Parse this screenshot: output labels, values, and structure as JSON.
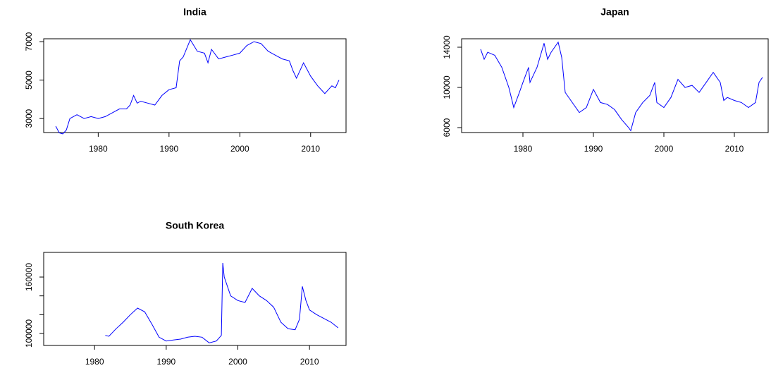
{
  "chart_data": [
    {
      "type": "line",
      "title": "India",
      "color": "#0000ff",
      "x": [
        1974,
        1974.5,
        1975,
        1975.5,
        1976,
        1977,
        1978,
        1979,
        1980,
        1981,
        1982,
        1983,
        1984,
        1984.5,
        1985,
        1985.5,
        1986,
        1987,
        1988,
        1989,
        1990,
        1991,
        1991.5,
        1992,
        1993,
        1994,
        1995,
        1995.5,
        1996,
        1997,
        1998,
        1999,
        2000,
        2001,
        2002,
        2003,
        2004,
        2005,
        2006,
        2007,
        2007.5,
        2008,
        2009,
        2010,
        2011,
        2012,
        2012.5,
        2013,
        2013.5,
        2014
      ],
      "values": [
        2600,
        2250,
        2200,
        2400,
        3000,
        3200,
        3000,
        3100,
        3000,
        3100,
        3300,
        3500,
        3500,
        3700,
        4200,
        3800,
        3900,
        3800,
        3700,
        4200,
        4500,
        4600,
        6000,
        6200,
        7100,
        6500,
        6400,
        5900,
        6600,
        6100,
        6200,
        6300,
        6400,
        6800,
        7000,
        6900,
        6500,
        6300,
        6100,
        6000,
        5500,
        5100,
        5900,
        5200,
        4700,
        4300,
        4500,
        4700,
        4600,
        5000
      ],
      "xlim": [
        1972.3,
        2015.0
      ],
      "xticks": [
        1980,
        1990,
        2000,
        2010
      ],
      "ylim": [
        2270,
        7150
      ],
      "yticks": [
        3000,
        5000,
        7000
      ]
    },
    {
      "type": "line",
      "title": "Japan",
      "color": "#0000ff",
      "x": [
        1974,
        1974.5,
        1975,
        1976,
        1977,
        1978,
        1978.7,
        1979.5,
        1980,
        1980.8,
        1981,
        1982,
        1983,
        1983.5,
        1984,
        1985,
        1985.5,
        1986,
        1987,
        1988,
        1989,
        1990,
        1991,
        1992,
        1993,
        1994,
        1995,
        1995.3,
        1996,
        1997,
        1998,
        1998.7,
        1999,
        2000,
        2001,
        2002,
        2003,
        2004,
        2005,
        2006,
        2007,
        2008,
        2008.5,
        2009,
        2010,
        2011,
        2012,
        2013,
        2013.5,
        2014
      ],
      "values": [
        13800,
        12800,
        13500,
        13200,
        12000,
        10000,
        8000,
        9500,
        10500,
        12000,
        10500,
        12000,
        14400,
        12800,
        13500,
        14500,
        13000,
        9500,
        8500,
        7500,
        8000,
        9800,
        8500,
        8300,
        7800,
        6800,
        6000,
        5700,
        7500,
        8500,
        9200,
        10500,
        8500,
        8000,
        9000,
        10800,
        10000,
        10200,
        9500,
        10500,
        11500,
        10500,
        8700,
        9000,
        8700,
        8500,
        8000,
        8500,
        10500,
        11000
      ],
      "xlim": [
        1971.3,
        2014.8
      ],
      "xticks": [
        1980,
        1990,
        2000,
        2010
      ],
      "ylim": [
        5510,
        14840
      ],
      "yticks": [
        6000,
        10000,
        14000
      ]
    },
    {
      "type": "line",
      "title": "South Korea",
      "color": "#0000ff",
      "x": [
        1981.5,
        1982,
        1983,
        1984,
        1985,
        1986,
        1987,
        1988,
        1989,
        1990,
        1991,
        1992,
        1993,
        1994,
        1995,
        1996,
        1997,
        1997.7,
        1997.9,
        1998.1,
        1999,
        2000,
        2001,
        2002,
        2003,
        2004,
        2005,
        2006,
        2007,
        2008,
        2008.6,
        2009,
        2009.5,
        2010,
        2011,
        2012,
        2013,
        2014
      ],
      "values": [
        98000,
        97000,
        105000,
        112000,
        120000,
        127000,
        123000,
        110000,
        96000,
        92000,
        93000,
        94000,
        96000,
        97000,
        96000,
        90000,
        92000,
        98000,
        175000,
        160000,
        140000,
        135000,
        133000,
        148000,
        140000,
        135000,
        128000,
        112000,
        105000,
        104000,
        115000,
        150000,
        135000,
        125000,
        120000,
        116000,
        112000,
        106000
      ],
      "xlim": [
        1972.9,
        2015.1
      ],
      "xticks": [
        1980,
        1990,
        2000,
        2010
      ],
      "ylim": [
        87250,
        186250
      ],
      "yticks": [
        100000,
        160000
      ],
      "yticks_unlabeled": [
        120000,
        140000
      ]
    }
  ]
}
